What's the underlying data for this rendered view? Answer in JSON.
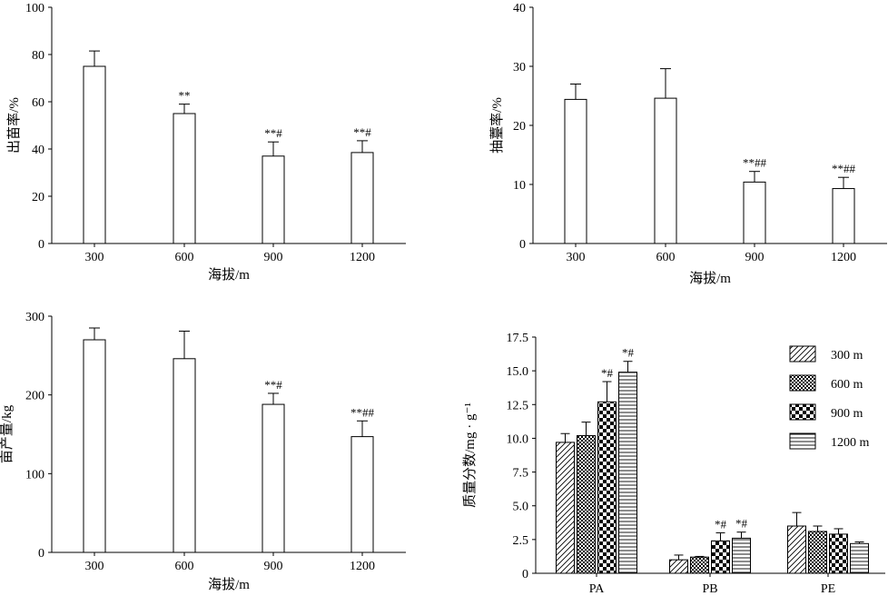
{
  "chart_data": [
    {
      "type": "bar",
      "ylabel": "出苗率/%",
      "xlabel": "海拔/m",
      "ylim": [
        0,
        100
      ],
      "yticks": [
        0,
        20,
        40,
        60,
        80,
        100
      ],
      "categories": [
        "300",
        "600",
        "900",
        "1200"
      ],
      "values": [
        75,
        55,
        37,
        38.5
      ],
      "errors": [
        6.5,
        4,
        6,
        5
      ],
      "annotations": [
        "",
        "**",
        "**#",
        "**#"
      ]
    },
    {
      "type": "bar",
      "ylabel": "抽薹率/%",
      "xlabel": "海拔/m",
      "ylim": [
        0,
        40
      ],
      "yticks": [
        0,
        10,
        20,
        30,
        40
      ],
      "categories": [
        "300",
        "600",
        "900",
        "1200"
      ],
      "values": [
        24.4,
        24.6,
        10.4,
        9.3
      ],
      "errors": [
        2.6,
        5,
        1.8,
        1.9
      ],
      "annotations": [
        "",
        "",
        "**##",
        "**##"
      ]
    },
    {
      "type": "bar",
      "ylabel": "亩产量/kg",
      "xlabel": "海拔/m",
      "ylim": [
        0,
        300
      ],
      "yticks": [
        0,
        100,
        200,
        300
      ],
      "categories": [
        "300",
        "600",
        "900",
        "1200"
      ],
      "values": [
        270,
        246,
        188,
        147
      ],
      "errors": [
        15,
        35,
        14,
        20
      ],
      "annotations": [
        "",
        "",
        "**#",
        "**##"
      ]
    },
    {
      "type": "bar",
      "ylabel": "质量分数/mg · g⁻¹",
      "xlabel": "",
      "ylim": [
        0,
        17.5
      ],
      "yticks": [
        "0",
        "2.5",
        "5.0",
        "7.5",
        "10.0",
        "12.5",
        "15.0",
        "17.5"
      ],
      "categories": [
        "PA",
        "PB",
        "PE"
      ],
      "series": [
        {
          "name": "300 m",
          "values": [
            9.7,
            1.0,
            3.5
          ],
          "errors": [
            0.65,
            0.35,
            1.0
          ],
          "annotations": [
            "",
            "",
            ""
          ]
        },
        {
          "name": "600 m",
          "values": [
            10.2,
            1.2,
            3.1
          ],
          "errors": [
            1.0,
            0.05,
            0.4
          ],
          "annotations": [
            "",
            "",
            ""
          ]
        },
        {
          "name": "900 m",
          "values": [
            12.7,
            2.4,
            2.9
          ],
          "errors": [
            1.5,
            0.6,
            0.4
          ],
          "annotations": [
            "*#",
            "*#",
            ""
          ]
        },
        {
          "name": "1200 m",
          "values": [
            14.9,
            2.6,
            2.2
          ],
          "errors": [
            0.8,
            0.45,
            0.12
          ],
          "annotations": [
            "*#",
            "*#",
            ""
          ]
        }
      ],
      "legend": "top-right"
    }
  ]
}
